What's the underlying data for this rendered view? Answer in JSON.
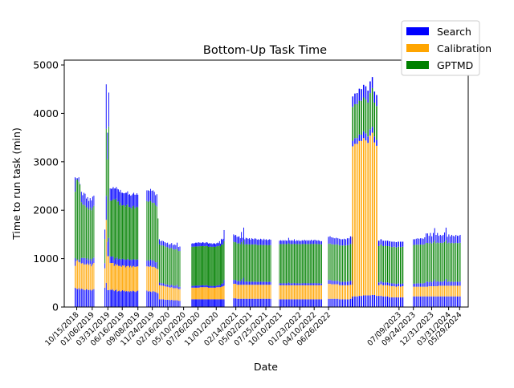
{
  "chart_data": {
    "type": "bar",
    "stacked": true,
    "title": "Bottom-Up Task Time",
    "xlabel": "Date",
    "ylabel": "Time to run task (min)",
    "ylim": [
      0,
      5100
    ],
    "xlim": [
      "2018-08-09",
      "2024-07-14"
    ],
    "y_ticks": [
      0,
      1000,
      2000,
      3000,
      4000,
      5000
    ],
    "x_ticks": [
      "10/15/2018",
      "01/06/2019",
      "03/31/2019",
      "06/16/2019",
      "09/08/2019",
      "11/24/2019",
      "02/16/2020",
      "05/10/2020",
      "07/26/2020",
      "11/01/2020",
      "02/14/2021",
      "05/02/2021",
      "07/25/2021",
      "10/10/2021",
      "01/23/2022",
      "04/10/2022",
      "06/26/2022",
      "07/09/2023",
      "09/24/2023",
      "12/31/2023",
      "03/31/2024",
      "05/29/2024"
    ],
    "x_tick_dates": [
      "2018-10-15",
      "2019-01-06",
      "2019-03-31",
      "2019-06-16",
      "2019-09-08",
      "2019-11-24",
      "2020-02-16",
      "2020-05-10",
      "2020-07-26",
      "2020-11-01",
      "2021-02-14",
      "2021-05-02",
      "2021-07-25",
      "2021-10-10",
      "2022-01-23",
      "2022-04-10",
      "2022-06-26",
      "2023-07-09",
      "2023-09-24",
      "2023-12-31",
      "2024-03-31",
      "2024-05-29"
    ],
    "grid": false,
    "legend": {
      "placement": "top-right, outside plot"
    },
    "series": [
      {
        "name": "Search",
        "color": "#0000ff"
      },
      {
        "name": "Calibration",
        "color": "#ffa500"
      },
      {
        "name": "GPTMD",
        "color": "#008000"
      }
    ],
    "segments": [
      {
        "start": "2018-10-06",
        "end": "2019-01-15",
        "count": 16,
        "search": [
          400,
          380,
          370,
          390,
          360,
          380,
          370,
          360,
          350,
          370,
          360,
          350,
          360,
          340,
          360,
          370
        ],
        "calibration": [
          450,
          570,
          600,
          540,
          560,
          520,
          540,
          520,
          530,
          510,
          540,
          520,
          530,
          500,
          520,
          540
        ],
        "gptmd": [
          1370,
          1660,
          1650,
          1610,
          1600,
          1150,
          1100,
          1100,
          1080,
          1070,
          1050,
          1050,
          1060,
          1050,
          1050,
          1070
        ],
        "search2": [
          460,
          50,
          40,
          140,
          20,
          330,
          300,
          380,
          380,
          290,
          320,
          270,
          300,
          310,
          350,
          320
        ]
      },
      {
        "start": "2019-03-15",
        "end": "2019-04-05",
        "count": 4,
        "search": [
          400,
          500,
          350,
          350
        ],
        "calibration": [
          400,
          1300,
          700,
          700
        ],
        "gptmd": [
          500,
          1380,
          1700,
          2300
        ],
        "search2": [
          300,
          1420,
          850,
          1080
        ]
      },
      {
        "start": "2019-04-12",
        "end": "2019-09-08",
        "count": 28,
        "search": [
          360,
          350,
          370,
          350,
          330,
          350,
          360,
          320,
          330,
          340,
          320,
          330,
          350,
          330,
          340,
          320,
          330,
          320,
          330,
          310,
          330,
          320,
          340,
          330,
          320,
          310,
          330,
          340
        ],
        "calibration": [
          550,
          560,
          540,
          560,
          520,
          540,
          500,
          560,
          520,
          510,
          530,
          500,
          510,
          520,
          520,
          500,
          510,
          530,
          520,
          510,
          520,
          500,
          500,
          520,
          510,
          520,
          510,
          500
        ],
        "gptmd": [
          1150,
          1150,
          1160,
          1180,
          1250,
          1200,
          1250,
          1150,
          1200,
          1100,
          1150,
          1120,
          1100,
          1120,
          1110,
          1100,
          1130,
          1120,
          1080,
          1100,
          1070,
          1060,
          1100,
          1100,
          1060,
          1090,
          1090,
          1080
        ],
        "search2": [
          390,
          380,
          380,
          390,
          350,
          360,
          370,
          410,
          380,
          430,
          420,
          410,
          400,
          380,
          380,
          440,
          390,
          420,
          390,
          410,
          380,
          430,
          400,
          410,
          430,
          400,
          420,
          400
        ]
      },
      {
        "start": "2019-10-26",
        "end": "2019-12-25",
        "count": 10,
        "search": [
          340,
          320,
          330,
          320,
          310,
          330,
          320,
          310,
          300,
          280
        ],
        "calibration": [
          500,
          520,
          500,
          530,
          520,
          500,
          510,
          500,
          490,
          500
        ],
        "gptmd": [
          1230,
          1200,
          1250,
          1210,
          1200,
          1180,
          1200,
          1180,
          1150,
          1050
        ],
        "search2": [
          340,
          370,
          320,
          380,
          370,
          400,
          350,
          320,
          390,
          0
        ]
      },
      {
        "start": "2020-01-01",
        "end": "2020-04-20",
        "count": 16,
        "search": [
          160,
          160,
          160,
          160,
          150,
          150,
          150,
          150,
          140,
          150,
          140,
          140,
          140,
          140,
          130,
          130
        ],
        "calibration": [
          290,
          290,
          280,
          280,
          280,
          270,
          270,
          260,
          260,
          260,
          250,
          250,
          250,
          250,
          240,
          240
        ],
        "gptmd": [
          790,
          780,
          780,
          780,
          780,
          770,
          770,
          760,
          760,
          760,
          750,
          750,
          750,
          740,
          740,
          740
        ],
        "search2": [
          160,
          130,
          150,
          140,
          130,
          130,
          140,
          120,
          140,
          150,
          140,
          150,
          140,
          200,
          130,
          140
        ]
      },
      {
        "start": "2020-06-23",
        "end": "2020-12-13",
        "count": 36,
        "search": [
          160,
          160,
          160,
          160,
          160,
          160,
          160,
          160,
          160,
          160,
          160,
          160,
          160,
          160,
          160,
          160,
          160,
          160,
          160,
          160,
          160,
          160,
          160,
          160,
          160,
          160,
          160,
          160,
          160,
          160,
          160,
          160,
          160,
          160,
          160,
          160
        ],
        "calibration": [
          240,
          240,
          240,
          240,
          240,
          240,
          240,
          240,
          240,
          250,
          250,
          250,
          250,
          250,
          250,
          250,
          250,
          250,
          240,
          240,
          240,
          240,
          240,
          240,
          240,
          240,
          240,
          250,
          250,
          250,
          250,
          250,
          260,
          260,
          270,
          280
        ],
        "gptmd": [
          810,
          810,
          810,
          810,
          810,
          810,
          810,
          810,
          810,
          810,
          810,
          810,
          810,
          810,
          810,
          810,
          810,
          810,
          810,
          810,
          810,
          810,
          810,
          810,
          810,
          810,
          810,
          810,
          810,
          810,
          810,
          810,
          810,
          810,
          800,
          800
        ],
        "search2": [
          100,
          110,
          100,
          110,
          120,
          120,
          110,
          130,
          120,
          110,
          100,
          110,
          120,
          110,
          100,
          110,
          120,
          110,
          100,
          110,
          100,
          110,
          90,
          100,
          110,
          100,
          90,
          100,
          110,
          100,
          140,
          90,
          180,
          160,
          180,
          350
        ]
      },
      {
        "start": "2021-02-02",
        "end": "2021-08-20",
        "count": 34,
        "search": [
          180,
          180,
          180,
          170,
          170,
          170,
          170,
          170,
          170,
          170,
          170,
          170,
          170,
          170,
          170,
          170,
          170,
          170,
          170,
          170,
          170,
          170,
          170,
          170,
          170,
          170,
          170,
          170,
          170,
          170,
          170,
          170,
          170,
          170
        ],
        "calibration": [
          300,
          300,
          300,
          290,
          290,
          290,
          290,
          290,
          290,
          290,
          290,
          290,
          290,
          290,
          290,
          290,
          290,
          290,
          290,
          290,
          290,
          290,
          290,
          290,
          290,
          290,
          290,
          290,
          290,
          290,
          290,
          290,
          290,
          290
        ],
        "gptmd": [
          790,
          780,
          780,
          780,
          780,
          780,
          770,
          770,
          770,
          770,
          770,
          770,
          770,
          770,
          770,
          770,
          770,
          770,
          770,
          770,
          770,
          760,
          760,
          760,
          760,
          760,
          760,
          760,
          760,
          760,
          760,
          760,
          760,
          760
        ],
        "search2": [
          230,
          220,
          230,
          210,
          210,
          220,
          190,
          320,
          200,
          410,
          170,
          200,
          190,
          180,
          190,
          160,
          190,
          180,
          170,
          190,
          180,
          170,
          180,
          170,
          190,
          180,
          160,
          190,
          170,
          180,
          160,
          170,
          180,
          170
        ]
      },
      {
        "start": "2021-10-06",
        "end": "2022-05-20",
        "count": 38,
        "search": [
          160,
          160,
          160,
          160,
          160,
          160,
          160,
          160,
          160,
          160,
          160,
          160,
          160,
          160,
          160,
          160,
          160,
          160,
          160,
          160,
          160,
          160,
          160,
          160,
          160,
          160,
          160,
          160,
          160,
          160,
          160,
          160,
          160,
          160,
          160,
          160,
          160,
          160
        ],
        "calibration": [
          290,
          290,
          290,
          290,
          290,
          290,
          290,
          290,
          290,
          290,
          290,
          290,
          290,
          290,
          290,
          290,
          290,
          290,
          290,
          290,
          290,
          290,
          290,
          290,
          290,
          290,
          290,
          290,
          290,
          290,
          290,
          290,
          290,
          290,
          290,
          290,
          290,
          290
        ],
        "gptmd": [
          810,
          810,
          810,
          810,
          810,
          810,
          810,
          810,
          810,
          810,
          810,
          810,
          810,
          810,
          810,
          810,
          810,
          810,
          810,
          810,
          810,
          810,
          810,
          810,
          810,
          810,
          810,
          810,
          810,
          810,
          810,
          810,
          810,
          810,
          810,
          810,
          810,
          810
        ],
        "search2": [
          110,
          120,
          110,
          120,
          110,
          120,
          110,
          110,
          170,
          120,
          110,
          120,
          110,
          140,
          100,
          120,
          110,
          120,
          100,
          110,
          120,
          110,
          130,
          110,
          120,
          110,
          120,
          110,
          130,
          110,
          120,
          130,
          120,
          110,
          120,
          110,
          100,
          100
        ]
      },
      {
        "start": "2022-06-26",
        "end": "2022-10-30",
        "count": 16,
        "search": [
          170,
          170,
          170,
          170,
          170,
          170,
          170,
          160,
          160,
          160,
          160,
          160,
          160,
          160,
          170,
          170
        ],
        "calibration": [
          310,
          310,
          300,
          300,
          300,
          300,
          300,
          290,
          290,
          290,
          290,
          290,
          290,
          290,
          290,
          290
        ],
        "gptmd": [
          750,
          750,
          750,
          750,
          750,
          750,
          750,
          750,
          750,
          750,
          750,
          750,
          750,
          750,
          760,
          760
        ],
        "search2": [
          220,
          230,
          220,
          210,
          200,
          210,
          200,
          210,
          200,
          200,
          210,
          200,
          220,
          220,
          240,
          230
        ]
      },
      {
        "start": "2022-11-03",
        "end": "2023-07-29",
        "count": 24,
        "search": [
          220,
          220,
          220,
          230,
          230,
          240,
          240,
          240,
          240,
          250,
          250,
          230,
          230,
          230,
          220,
          220,
          220,
          200,
          200,
          200,
          200,
          200,
          200,
          200
        ],
        "calibration": [
          3100,
          3150,
          3150,
          3200,
          3200,
          3250,
          3200,
          3150,
          3300,
          3350,
          3150,
          3100,
          220,
          240,
          230,
          230,
          230,
          240,
          230,
          230,
          220,
          230,
          220,
          230
        ],
        "gptmd": [
          700,
          700,
          700,
          700,
          700,
          700,
          700,
          700,
          750,
          800,
          700,
          700,
          750,
          760,
          750,
          760,
          750,
          760,
          750,
          760,
          750,
          760,
          760,
          760
        ],
        "search2": [
          330,
          340,
          350,
          380,
          370,
          400,
          420,
          380,
          370,
          350,
          350,
          350,
          170,
          170,
          170,
          160,
          170,
          160,
          170,
          160,
          170,
          160,
          170,
          160
        ]
      },
      {
        "start": "2023-09-24",
        "end": "2024-06-01",
        "count": 34,
        "search": [
          220,
          220,
          220,
          220,
          220,
          220,
          220,
          220,
          220,
          220,
          220,
          220,
          220,
          220,
          220,
          220,
          220,
          220,
          220,
          220,
          220,
          220,
          220,
          220,
          220,
          220,
          220,
          220,
          220,
          220,
          220,
          220,
          220,
          220
        ],
        "calibration": [
          200,
          200,
          200,
          200,
          200,
          200,
          200,
          200,
          200,
          200,
          200,
          210,
          210,
          210,
          210,
          210,
          210,
          210,
          220,
          220,
          220,
          220,
          220,
          220,
          220,
          220,
          220,
          220,
          220,
          220,
          220,
          220,
          220,
          220
        ],
        "gptmd": [
          800,
          800,
          800,
          800,
          800,
          800,
          800,
          800,
          800,
          800,
          800,
          800,
          800,
          800,
          800,
          800,
          800,
          800,
          800,
          800,
          800,
          800,
          800,
          800,
          800,
          800,
          800,
          800,
          800,
          800,
          800,
          800,
          800,
          800
        ],
        "search2": [
          180,
          180,
          190,
          200,
          190,
          200,
          200,
          190,
          220,
          300,
          300,
          240,
          300,
          230,
          300,
          400,
          260,
          300,
          230,
          250,
          230,
          250,
          300,
          400,
          210,
          260,
          220,
          250,
          230,
          220,
          250,
          230,
          230,
          250
        ]
      }
    ]
  }
}
